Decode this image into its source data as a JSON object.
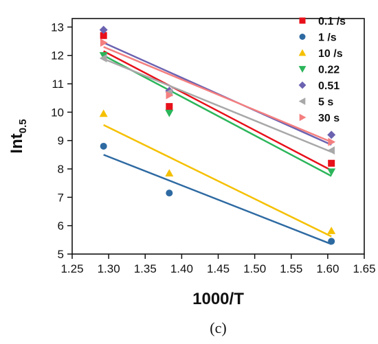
{
  "chart_data": {
    "type": "scatter",
    "xlabel": "1000/T",
    "ylabel_main": "Int",
    "ylabel_sub": "0.5",
    "caption": "(c)",
    "xlim": [
      1.25,
      1.65
    ],
    "ylim": [
      5,
      13.3
    ],
    "x_ticks": [
      "1.25",
      "1.30",
      "1.35",
      "1.40",
      "1.45",
      "1.50",
      "1.55",
      "1.60",
      "1.65"
    ],
    "y_ticks": [
      "5",
      "6",
      "7",
      "8",
      "9",
      "10",
      "11",
      "12",
      "13"
    ],
    "legend_position": "top-right",
    "x": [
      1.293,
      1.383,
      1.605
    ],
    "series": [
      {
        "name": "0.1 /s",
        "color": "#e8101a",
        "marker": "square",
        "values": [
          12.7,
          10.2,
          8.2
        ],
        "fit": [
          12.15,
          7.95
        ]
      },
      {
        "name": "1 /s",
        "color": "#2e6aa2",
        "marker": "circle",
        "values": [
          8.8,
          7.15,
          5.45
        ],
        "fit": [
          8.5,
          5.35
        ]
      },
      {
        "name": "10 /s",
        "color": "#f5c000",
        "marker": "triangle-up",
        "values": [
          9.95,
          7.85,
          5.82
        ],
        "fit": [
          9.55,
          5.62
        ]
      },
      {
        "name": "0.22",
        "color": "#2bb55a",
        "marker": "triangle-down",
        "values": [
          12.0,
          9.97,
          7.9
        ],
        "fit": [
          12.0,
          7.75
        ]
      },
      {
        "name": "0.51",
        "color": "#6b62b0",
        "marker": "diamond",
        "values": [
          12.9,
          10.75,
          9.2
        ],
        "fit": [
          12.45,
          8.85
        ]
      },
      {
        "name": "5 s",
        "color": "#a8a8a8",
        "marker": "triangle-left",
        "values": [
          11.9,
          10.7,
          8.65
        ],
        "fit": [
          11.88,
          8.6
        ]
      },
      {
        "name": "30 s",
        "color": "#f47f7f",
        "marker": "triangle-right",
        "values": [
          12.45,
          10.6,
          8.95
        ],
        "fit": [
          12.3,
          8.95
        ]
      }
    ]
  }
}
